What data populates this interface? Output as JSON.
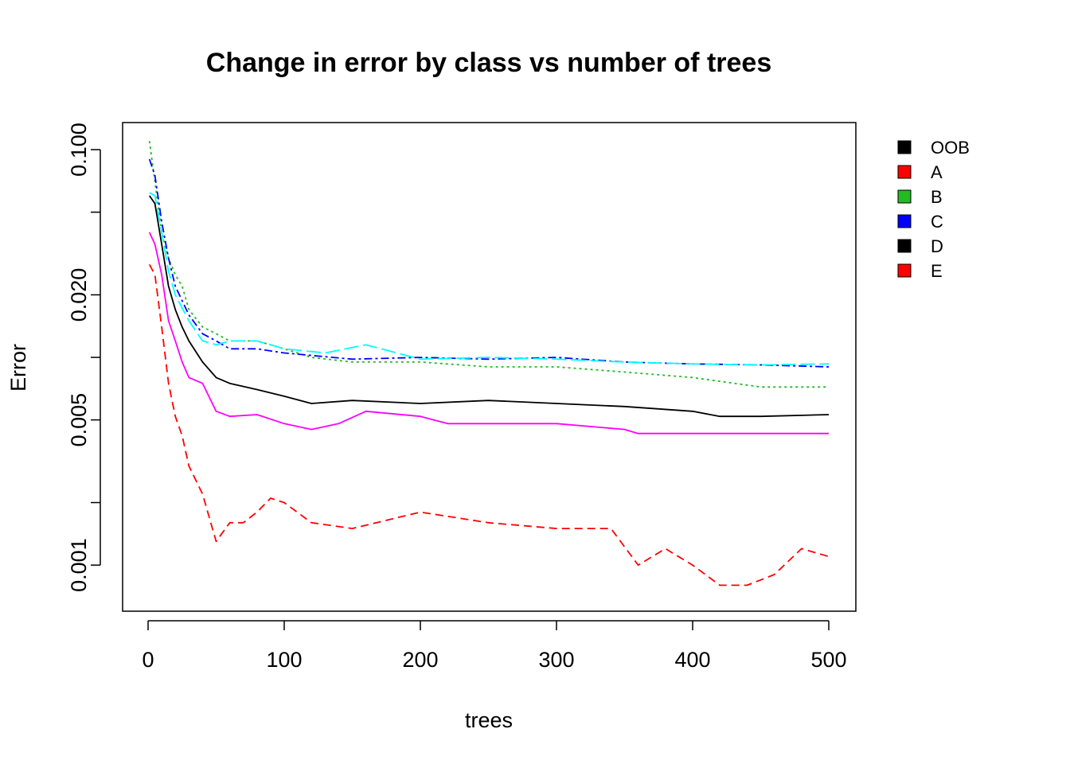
{
  "chart_data": {
    "type": "line",
    "title": "Change in error by class vs number of trees",
    "xlabel": "trees",
    "ylabel": "Error",
    "xlim": [
      0,
      500
    ],
    "ylim": [
      0.0006,
      0.135
    ],
    "y_scale": "log",
    "x_ticks": [
      0,
      100,
      200,
      300,
      400,
      500
    ],
    "y_ticks": [
      0.001,
      0.002,
      0.005,
      0.01,
      0.02,
      0.05,
      0.1
    ],
    "y_tick_labels": [
      "0.001",
      "",
      "0.005",
      "",
      "0.020",
      "",
      "0.100"
    ],
    "grid": false,
    "legend_position": "outside-right",
    "legend": [
      {
        "label": "OOB",
        "color": "#000000"
      },
      {
        "label": "A",
        "color": "#ff0000"
      },
      {
        "label": "B",
        "color": "#22bb22"
      },
      {
        "label": "C",
        "color": "#0000ff"
      },
      {
        "label": "D",
        "color": "#000000"
      },
      {
        "label": "E",
        "color": "#ff0000"
      }
    ],
    "series": [
      {
        "color": "#000000",
        "dash": "solid",
        "values": [
          [
            1,
            0.06
          ],
          [
            5,
            0.055
          ],
          [
            10,
            0.035
          ],
          [
            15,
            0.022
          ],
          [
            20,
            0.017
          ],
          [
            25,
            0.014
          ],
          [
            30,
            0.012
          ],
          [
            40,
            0.0095
          ],
          [
            50,
            0.008
          ],
          [
            60,
            0.0075
          ],
          [
            80,
            0.007
          ],
          [
            100,
            0.0065
          ],
          [
            120,
            0.006
          ],
          [
            150,
            0.0062
          ],
          [
            200,
            0.006
          ],
          [
            250,
            0.0062
          ],
          [
            300,
            0.006
          ],
          [
            350,
            0.0058
          ],
          [
            400,
            0.0055
          ],
          [
            420,
            0.0052
          ],
          [
            450,
            0.0052
          ],
          [
            500,
            0.0053
          ]
        ]
      },
      {
        "color": "#ff0000",
        "dash": "dashed",
        "values": [
          [
            1,
            0.028
          ],
          [
            5,
            0.025
          ],
          [
            10,
            0.014
          ],
          [
            15,
            0.0075
          ],
          [
            20,
            0.0052
          ],
          [
            25,
            0.0042
          ],
          [
            30,
            0.003
          ],
          [
            40,
            0.0022
          ],
          [
            50,
            0.0013
          ],
          [
            60,
            0.0016
          ],
          [
            70,
            0.0016
          ],
          [
            80,
            0.0018
          ],
          [
            90,
            0.0021
          ],
          [
            100,
            0.002
          ],
          [
            120,
            0.0016
          ],
          [
            150,
            0.0015
          ],
          [
            200,
            0.0018
          ],
          [
            250,
            0.0016
          ],
          [
            300,
            0.0015
          ],
          [
            340,
            0.0015
          ],
          [
            360,
            0.001
          ],
          [
            380,
            0.0012
          ],
          [
            400,
            0.001
          ],
          [
            420,
            0.0008
          ],
          [
            440,
            0.0008
          ],
          [
            460,
            0.0009
          ],
          [
            480,
            0.0012
          ],
          [
            500,
            0.0011
          ]
        ]
      },
      {
        "color": "#22bb22",
        "dash": "dotted",
        "values": [
          [
            1,
            0.11
          ],
          [
            5,
            0.07
          ],
          [
            10,
            0.04
          ],
          [
            15,
            0.03
          ],
          [
            20,
            0.025
          ],
          [
            25,
            0.022
          ],
          [
            30,
            0.017
          ],
          [
            40,
            0.014
          ],
          [
            50,
            0.013
          ],
          [
            60,
            0.012
          ],
          [
            80,
            0.012
          ],
          [
            100,
            0.011
          ],
          [
            120,
            0.01
          ],
          [
            150,
            0.0095
          ],
          [
            200,
            0.0095
          ],
          [
            250,
            0.009
          ],
          [
            300,
            0.009
          ],
          [
            350,
            0.0085
          ],
          [
            400,
            0.008
          ],
          [
            450,
            0.0072
          ],
          [
            500,
            0.0072
          ]
        ]
      },
      {
        "color": "#0000ff",
        "dash": "dashdot",
        "values": [
          [
            1,
            0.09
          ],
          [
            5,
            0.075
          ],
          [
            10,
            0.045
          ],
          [
            15,
            0.03
          ],
          [
            20,
            0.022
          ],
          [
            30,
            0.016
          ],
          [
            40,
            0.013
          ],
          [
            50,
            0.012
          ],
          [
            60,
            0.011
          ],
          [
            80,
            0.011
          ],
          [
            100,
            0.0105
          ],
          [
            150,
            0.0098
          ],
          [
            200,
            0.01
          ],
          [
            250,
            0.0098
          ],
          [
            300,
            0.01
          ],
          [
            350,
            0.0095
          ],
          [
            400,
            0.0093
          ],
          [
            450,
            0.0092
          ],
          [
            500,
            0.009
          ]
        ]
      },
      {
        "color": "#00ffff",
        "dash": "longdash",
        "values": [
          [
            1,
            0.062
          ],
          [
            5,
            0.06
          ],
          [
            10,
            0.04
          ],
          [
            15,
            0.026
          ],
          [
            20,
            0.02
          ],
          [
            30,
            0.015
          ],
          [
            40,
            0.012
          ],
          [
            50,
            0.0115
          ],
          [
            60,
            0.012
          ],
          [
            80,
            0.012
          ],
          [
            100,
            0.011
          ],
          [
            130,
            0.0105
          ],
          [
            160,
            0.0115
          ],
          [
            200,
            0.0098
          ],
          [
            250,
            0.01
          ],
          [
            300,
            0.0098
          ],
          [
            350,
            0.0095
          ],
          [
            400,
            0.0093
          ],
          [
            450,
            0.0092
          ],
          [
            500,
            0.0093
          ]
        ]
      },
      {
        "color": "#ff00ff",
        "dash": "solid",
        "values": [
          [
            1,
            0.04
          ],
          [
            5,
            0.035
          ],
          [
            10,
            0.025
          ],
          [
            15,
            0.015
          ],
          [
            20,
            0.012
          ],
          [
            25,
            0.0095
          ],
          [
            30,
            0.008
          ],
          [
            40,
            0.0075
          ],
          [
            50,
            0.0055
          ],
          [
            60,
            0.0052
          ],
          [
            80,
            0.0053
          ],
          [
            100,
            0.0048
          ],
          [
            120,
            0.0045
          ],
          [
            140,
            0.0048
          ],
          [
            160,
            0.0055
          ],
          [
            200,
            0.0052
          ],
          [
            220,
            0.0048
          ],
          [
            250,
            0.0048
          ],
          [
            300,
            0.0048
          ],
          [
            350,
            0.0045
          ],
          [
            360,
            0.0043
          ],
          [
            400,
            0.0043
          ],
          [
            500,
            0.0043
          ]
        ]
      }
    ]
  }
}
